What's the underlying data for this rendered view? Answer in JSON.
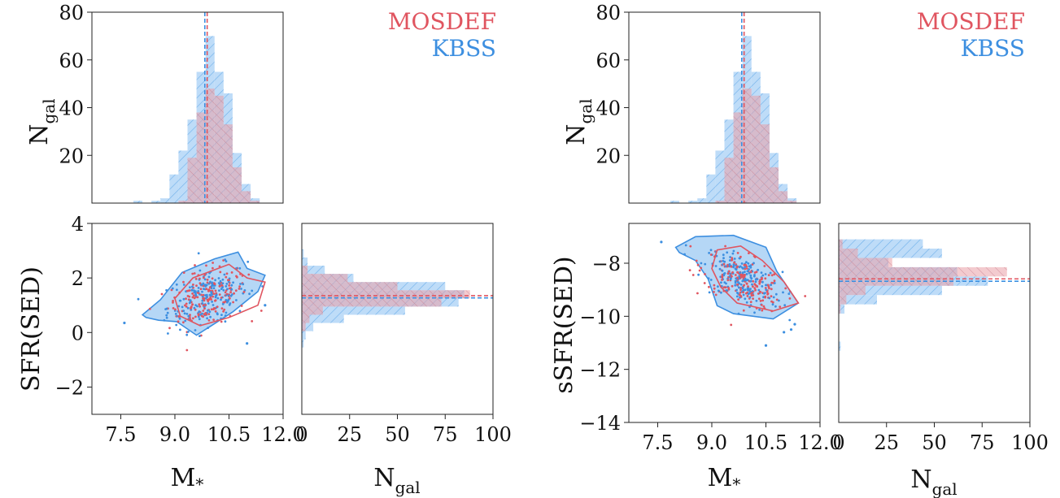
{
  "colors": {
    "mosdef": "#e05560",
    "kbss": "#3d8fe0",
    "mosdef_fill": "#e8a0a8",
    "kbss_fill": "#a8d0f5"
  },
  "legend": {
    "mosdef": "MOSDEF",
    "kbss": "KBSS"
  },
  "labels": {
    "ngal": "N",
    "ngal_sub": "gal",
    "mass": "M",
    "mass_sub": "*",
    "sfr": "SFR(SED)",
    "ssfr": "sSFR(SED)"
  },
  "chart_data": [
    {
      "type": "bar",
      "panel": "left-top: stellar mass histogram",
      "x_bins": [
        7.6,
        7.85,
        8.1,
        8.35,
        8.6,
        8.85,
        9.1,
        9.35,
        9.6,
        9.85,
        10.1,
        10.35,
        10.6,
        10.85,
        11.1,
        11.35,
        11.6
      ],
      "series": [
        {
          "name": "MOSDEF",
          "values": [
            0,
            0,
            0,
            0,
            0,
            0,
            1,
            19,
            38,
            48,
            45,
            33,
            15,
            5,
            1,
            0
          ]
        },
        {
          "name": "KBSS",
          "values": [
            0,
            1,
            0,
            1,
            2,
            12,
            22,
            35,
            55,
            70,
            55,
            46,
            21,
            8,
            2,
            0
          ]
        }
      ],
      "median_lines": {
        "MOSDEF": 9.85,
        "KBSS": 9.83
      },
      "xlim": [
        6.7,
        12.0
      ],
      "ylim": [
        0,
        80
      ],
      "yticks": [
        "20",
        "40",
        "60",
        "80"
      ]
    },
    {
      "type": "scatter",
      "panel": "left-bottom: SFR(SED) vs M*",
      "xlabel": "M*",
      "ylabel": "SFR(SED)",
      "xlim": [
        6.7,
        12.0
      ],
      "ylim": [
        -3,
        4
      ],
      "xticks": [
        "7.5",
        "9.0",
        "10.5",
        "12.0"
      ],
      "yticks": [
        "−2",
        "0",
        "2",
        "4"
      ],
      "kbss_contour": [
        [
          8.1,
          0.65
        ],
        [
          8.6,
          1.2
        ],
        [
          9.2,
          2.2
        ],
        [
          10.1,
          2.7
        ],
        [
          10.75,
          2.95
        ],
        [
          11.0,
          2.35
        ],
        [
          11.5,
          2.1
        ],
        [
          11.3,
          1.5
        ],
        [
          10.6,
          0.75
        ],
        [
          9.6,
          -0.1
        ],
        [
          9.05,
          0.4
        ],
        [
          8.55,
          0.45
        ],
        [
          8.2,
          0.55
        ]
      ],
      "mosdef_contour": [
        [
          9.0,
          1.25
        ],
        [
          9.5,
          2.0
        ],
        [
          10.5,
          2.5
        ],
        [
          11.0,
          2.0
        ],
        [
          11.5,
          1.85
        ],
        [
          11.3,
          1.0
        ],
        [
          10.5,
          0.55
        ],
        [
          9.7,
          0.25
        ],
        [
          9.15,
          0.6
        ]
      ],
      "outliers": [
        [
          7.6,
          0.35
        ],
        [
          11.0,
          -0.4
        ],
        [
          11.5,
          1.0
        ]
      ]
    },
    {
      "type": "bar",
      "orientation": "horizontal",
      "panel": "left-bottom-right: SFR(SED) histogram",
      "xlabel": "N",
      "xlim": [
        0,
        100
      ],
      "xticks": [
        "25",
        "50",
        "75",
        "100"
      ],
      "y_bins": [
        -0.55,
        -0.25,
        0.05,
        0.35,
        0.65,
        0.95,
        1.25,
        1.55,
        1.85,
        2.15,
        2.45,
        2.75,
        3.05,
        3.35
      ],
      "series": [
        {
          "name": "MOSDEF",
          "values": [
            0,
            0,
            2,
            4,
            11,
            73,
            88,
            50,
            24,
            3,
            0,
            0,
            0
          ]
        },
        {
          "name": "KBSS",
          "values": [
            1,
            2,
            6,
            22,
            54,
            82,
            85,
            75,
            27,
            12,
            3,
            1,
            0
          ]
        }
      ],
      "median_lines": {
        "MOSDEF": 1.32,
        "KBSS": 1.3
      }
    },
    {
      "type": "bar",
      "panel": "right-top: stellar mass histogram",
      "x_bins": [
        7.6,
        7.85,
        8.1,
        8.35,
        8.6,
        8.85,
        9.1,
        9.35,
        9.6,
        9.85,
        10.1,
        10.35,
        10.6,
        10.85,
        11.1,
        11.35,
        11.6
      ],
      "series": [
        {
          "name": "MOSDEF",
          "values": [
            0,
            0,
            0,
            0,
            0,
            0,
            1,
            19,
            38,
            48,
            45,
            33,
            15,
            5,
            1,
            0
          ]
        },
        {
          "name": "KBSS",
          "values": [
            0,
            1,
            0,
            1,
            2,
            12,
            22,
            35,
            55,
            70,
            55,
            46,
            21,
            8,
            2,
            0
          ]
        }
      ],
      "median_lines": {
        "MOSDEF": 9.85,
        "KBSS": 9.83
      },
      "xlim": [
        6.7,
        12.0
      ],
      "ylim": [
        0,
        80
      ],
      "yticks": [
        "20",
        "40",
        "60",
        "80"
      ]
    },
    {
      "type": "scatter",
      "panel": "right-bottom: sSFR(SED) vs M*",
      "xlabel": "M*",
      "ylabel": "sSFR(SED)",
      "xlim": [
        6.7,
        12.0
      ],
      "ylim": [
        -14,
        -6.5
      ],
      "xticks": [
        "7.5",
        "9.0",
        "10.5",
        "12.0"
      ],
      "yticks": [
        "−14",
        "−12",
        "−10",
        "−8"
      ],
      "kbss_contour": [
        [
          8.0,
          -7.4
        ],
        [
          8.55,
          -7.0
        ],
        [
          9.6,
          -6.95
        ],
        [
          10.5,
          -7.4
        ],
        [
          10.8,
          -8.3
        ],
        [
          11.15,
          -9.0
        ],
        [
          11.4,
          -9.5
        ],
        [
          10.7,
          -10.1
        ],
        [
          9.6,
          -9.9
        ],
        [
          9.15,
          -9.6
        ],
        [
          8.9,
          -8.6
        ],
        [
          8.55,
          -7.9
        ],
        [
          8.1,
          -7.6
        ]
      ],
      "mosdef_contour": [
        [
          9.15,
          -7.5
        ],
        [
          9.8,
          -7.35
        ],
        [
          10.4,
          -7.9
        ],
        [
          11.0,
          -8.7
        ],
        [
          11.4,
          -9.5
        ],
        [
          10.7,
          -9.8
        ],
        [
          9.7,
          -9.5
        ],
        [
          9.25,
          -8.9
        ],
        [
          9.0,
          -8.2
        ]
      ],
      "outliers": [
        [
          7.6,
          -7.2
        ],
        [
          10.5,
          -11.1
        ],
        [
          11.2,
          -10.5
        ],
        [
          11.3,
          -10.3
        ],
        [
          11.0,
          -10.6
        ]
      ]
    },
    {
      "type": "bar",
      "orientation": "horizontal",
      "panel": "right-bottom-right: sSFR(SED) histogram",
      "xlabel": "N",
      "xlim": [
        0,
        100
      ],
      "xticks": [
        "25",
        "50",
        "75",
        "100"
      ],
      "y_bins": [
        -11.3,
        -10.95,
        -10.6,
        -10.25,
        -9.9,
        -9.55,
        -9.2,
        -8.85,
        -8.5,
        -8.15,
        -7.8,
        -7.45,
        -7.1,
        -6.75
      ],
      "series": [
        {
          "name": "MOSDEF",
          "values": [
            0,
            0,
            0,
            0,
            1,
            4,
            14,
            60,
            88,
            28,
            10,
            2,
            0
          ]
        },
        {
          "name": "KBSS",
          "values": [
            1,
            0,
            0,
            0,
            3,
            20,
            54,
            78,
            62,
            26,
            54,
            44,
            0
          ]
        }
      ],
      "median_lines": {
        "MOSDEF": -8.62,
        "KBSS": -8.65
      }
    }
  ]
}
